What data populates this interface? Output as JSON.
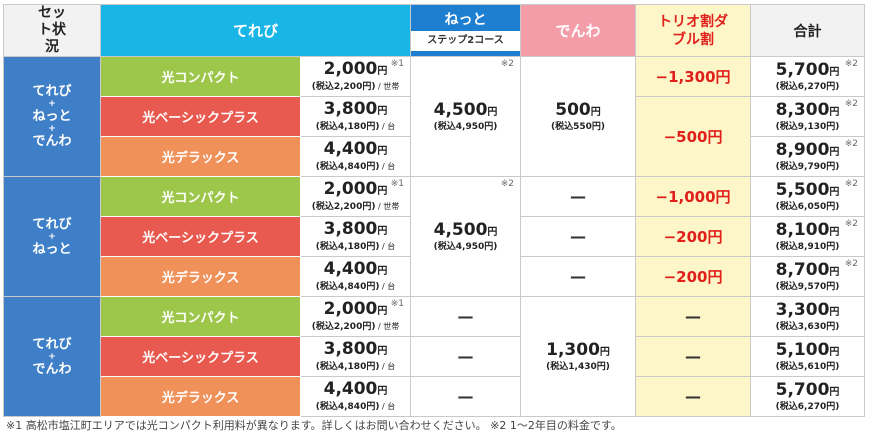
{
  "header": {
    "set": "セット状況",
    "tv": "てれび",
    "net": "ねっと",
    "net_sub": "ステップ2コース",
    "phone": "でんわ",
    "trio": "トリオ割ダブル割",
    "total": "合計"
  },
  "tax_prefix": "(税込",
  "yen": "円",
  "slash": "/",
  "unit_household": "世帯",
  "unit_device": "台",
  "note_1": "※1",
  "note_2": "※2",
  "plus": "+",
  "dash": "—",
  "plans": {
    "compact": "光コンパクト",
    "basic": "光ベーシックプラス",
    "deluxe": "光デラックス"
  },
  "groups": [
    {
      "label_lines": [
        "てれび",
        "+",
        "ねっと",
        "+",
        "でんわ"
      ],
      "tv": [
        {
          "price": "2,000",
          "tax": "2,200",
          "unit": "世帯"
        },
        {
          "price": "3,800",
          "tax": "4,180",
          "unit": "台"
        },
        {
          "price": "4,400",
          "tax": "4,840",
          "unit": "台"
        }
      ],
      "net": {
        "price": "4,500",
        "tax": "4,950"
      },
      "phone": {
        "price": "500",
        "tax": "550"
      },
      "trio": [
        "−1,300円",
        "−500円"
      ],
      "totals": [
        {
          "price": "5,700",
          "tax": "6,270"
        },
        {
          "price": "8,300",
          "tax": "9,130"
        },
        {
          "price": "8,900",
          "tax": "9,790"
        }
      ]
    },
    {
      "label_lines": [
        "てれび",
        "+",
        "ねっと"
      ],
      "tv": [
        {
          "price": "2,000",
          "tax": "2,200",
          "unit": "世帯"
        },
        {
          "price": "3,800",
          "tax": "4,180",
          "unit": "台"
        },
        {
          "price": "4,400",
          "tax": "4,840",
          "unit": "台"
        }
      ],
      "net": {
        "price": "4,500",
        "tax": "4,950"
      },
      "trio": [
        "−1,000円",
        "−200円",
        "−200円"
      ],
      "totals": [
        {
          "price": "5,500",
          "tax": "6,050"
        },
        {
          "price": "8,100",
          "tax": "8,910"
        },
        {
          "price": "8,700",
          "tax": "9,570"
        }
      ]
    },
    {
      "label_lines": [
        "てれび",
        "+",
        "でんわ"
      ],
      "tv": [
        {
          "price": "2,000",
          "tax": "2,200",
          "unit": "世帯"
        },
        {
          "price": "3,800",
          "tax": "4,180",
          "unit": "台"
        },
        {
          "price": "4,400",
          "tax": "4,840",
          "unit": "台"
        }
      ],
      "phone": {
        "price": "1,300",
        "tax": "1,430"
      },
      "totals": [
        {
          "price": "3,300",
          "tax": "3,630"
        },
        {
          "price": "5,100",
          "tax": "5,610"
        },
        {
          "price": "5,700",
          "tax": "6,270"
        }
      ]
    }
  ],
  "footnote": "※1 高松市塩江町エリアでは光コンパクト利用料が異なります。詳しくはお問い合わせください。 ※2 1〜2年目の料金です。"
}
